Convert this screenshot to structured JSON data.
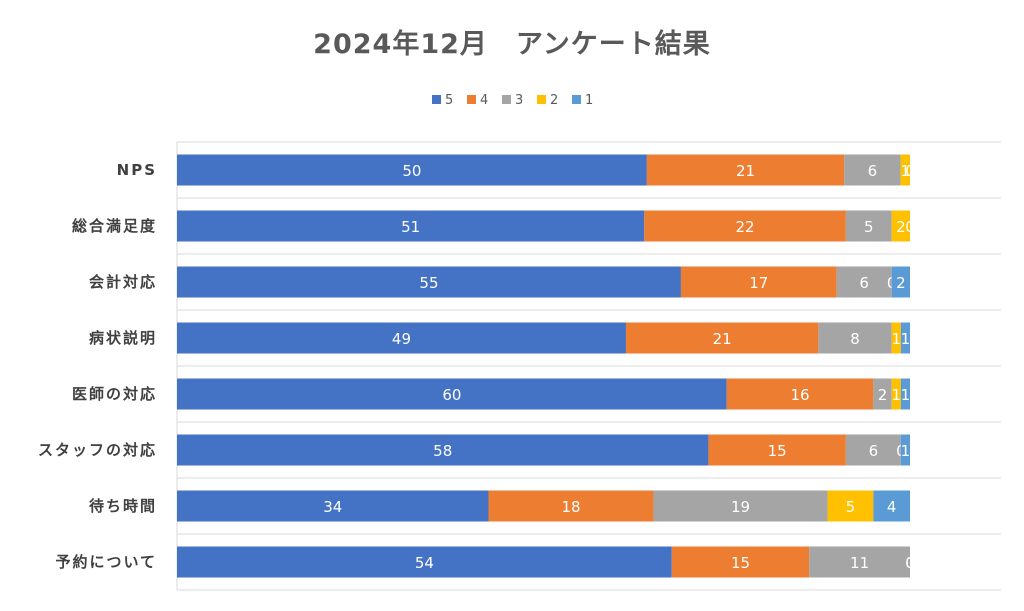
{
  "chart_data": {
    "type": "bar",
    "orientation": "horizontal",
    "stacked": "100%",
    "title": "2024年12月　アンケート結果",
    "categories": [
      "NPS",
      "総合満足度",
      "会計対応",
      "病状説明",
      "医師の対応",
      "スタッフの対応",
      "待ち時間",
      "予約について"
    ],
    "series": [
      {
        "name": "5",
        "color": "#4472C4",
        "values": [
          50,
          51,
          55,
          49,
          60,
          58,
          34,
          54
        ]
      },
      {
        "name": "4",
        "color": "#ED7D31",
        "values": [
          21,
          22,
          17,
          21,
          16,
          15,
          18,
          15
        ]
      },
      {
        "name": "3",
        "color": "#A5A5A5",
        "values": [
          6,
          5,
          6,
          8,
          2,
          6,
          19,
          11
        ]
      },
      {
        "name": "2",
        "color": "#FFC000",
        "values": [
          1,
          2,
          0,
          1,
          1,
          0,
          5,
          0
        ]
      },
      {
        "name": "1",
        "color": "#5B9BD5",
        "values": [
          0,
          0,
          2,
          1,
          1,
          1,
          4,
          0
        ]
      }
    ],
    "legend_position": "top",
    "grid": true,
    "x_range_percent": [
      0,
      100
    ]
  }
}
